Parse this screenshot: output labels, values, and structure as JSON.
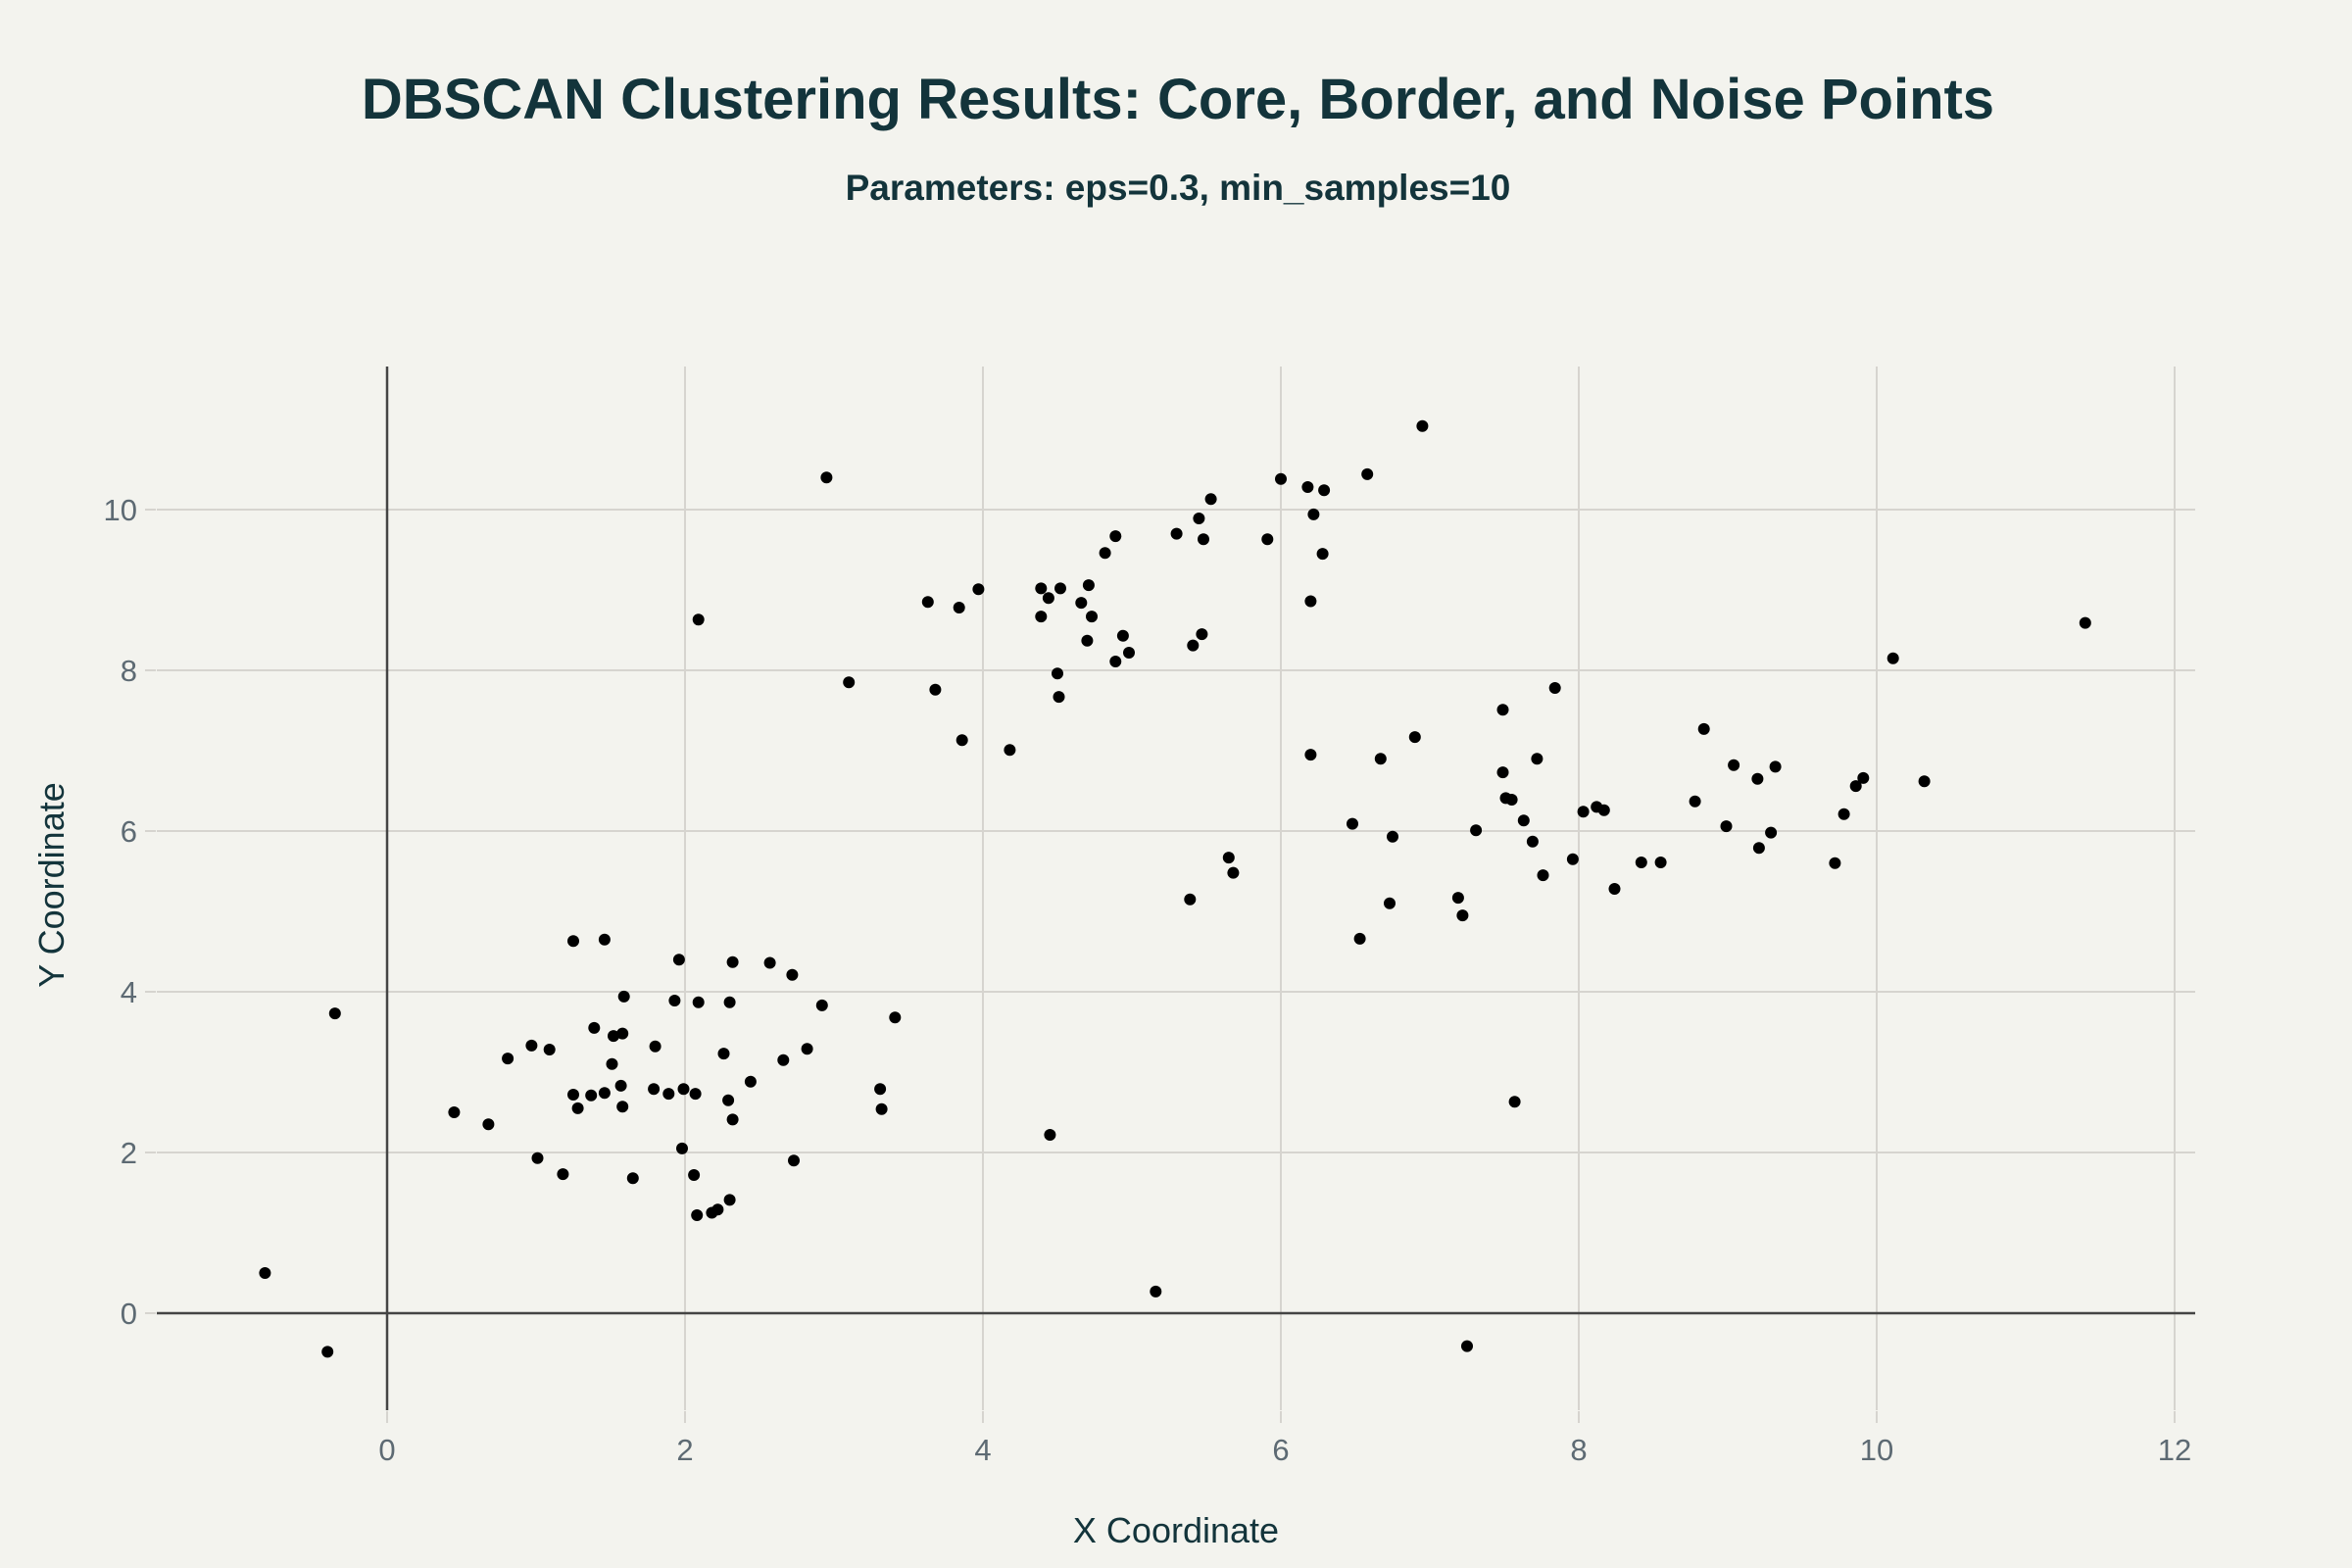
{
  "header": {
    "title": "DBSCAN Clustering Results: Core, Border, and Noise Points",
    "subtitle": "Parameters: eps=0.3, min_samples=10"
  },
  "axes": {
    "x_title": "X Coordinate",
    "y_title": "Y Coordinate",
    "x_ticks": [
      "0",
      "2",
      "4",
      "6",
      "8",
      "10",
      "12"
    ],
    "y_ticks": [
      "0",
      "2",
      "4",
      "6",
      "8",
      "10"
    ]
  },
  "colors": {
    "background": "#f3f3ee",
    "text": "#13343b",
    "tick_text": "#5d6a73",
    "grid": "#d6d4cf",
    "zeroline": "#444444",
    "marker": "#000000"
  },
  "chart_data": {
    "type": "scatter",
    "title": "DBSCAN Clustering Results: Core, Border, and Noise Points",
    "subtitle": "Parameters: eps=0.3, min_samples=10",
    "xlabel": "X Coordinate",
    "ylabel": "Y Coordinate",
    "xlim": [
      -1.55,
      12.15
    ],
    "ylim": [
      -1.2,
      11.8
    ],
    "x_tick_values": [
      0,
      2,
      4,
      6,
      8,
      10,
      12
    ],
    "y_tick_values": [
      0,
      2,
      4,
      6,
      8,
      10
    ],
    "grid": true,
    "legend": null,
    "marker_color": "#000000",
    "series": [
      {
        "name": "points",
        "points": [
          [
            -0.82,
            0.5
          ],
          [
            -0.4,
            -0.48
          ],
          [
            -0.35,
            3.73
          ],
          [
            1.25,
            4.63
          ],
          [
            1.46,
            4.65
          ],
          [
            1.96,
            4.4
          ],
          [
            1.59,
            3.94
          ],
          [
            1.93,
            3.89
          ],
          [
            1.39,
            3.55
          ],
          [
            1.52,
            3.45
          ],
          [
            1.58,
            3.48
          ],
          [
            0.97,
            3.33
          ],
          [
            1.09,
            3.28
          ],
          [
            1.8,
            3.32
          ],
          [
            0.81,
            3.17
          ],
          [
            1.51,
            3.1
          ],
          [
            1.57,
            2.83
          ],
          [
            1.25,
            2.72
          ],
          [
            1.37,
            2.71
          ],
          [
            1.46,
            2.74
          ],
          [
            1.79,
            2.79
          ],
          [
            1.89,
            2.73
          ],
          [
            1.99,
            2.79
          ],
          [
            1.28,
            2.55
          ],
          [
            1.58,
            2.57
          ],
          [
            0.45,
            2.5
          ],
          [
            0.68,
            2.35
          ],
          [
            1.01,
            1.93
          ],
          [
            1.18,
            1.73
          ],
          [
            1.65,
            1.68
          ],
          [
            1.98,
            2.05
          ],
          [
            2.32,
            4.37
          ],
          [
            2.57,
            4.36
          ],
          [
            2.72,
            4.21
          ],
          [
            2.09,
            3.87
          ],
          [
            2.3,
            3.87
          ],
          [
            2.92,
            3.83
          ],
          [
            3.41,
            3.68
          ],
          [
            2.26,
            3.23
          ],
          [
            2.66,
            3.15
          ],
          [
            2.82,
            3.29
          ],
          [
            2.44,
            2.88
          ],
          [
            2.07,
            2.73
          ],
          [
            2.29,
            2.65
          ],
          [
            2.32,
            2.41
          ],
          [
            3.31,
            2.79
          ],
          [
            3.32,
            2.54
          ],
          [
            2.73,
            1.9
          ],
          [
            2.06,
            1.72
          ],
          [
            2.3,
            1.41
          ],
          [
            2.08,
            1.22
          ],
          [
            2.18,
            1.25
          ],
          [
            2.22,
            1.29
          ],
          [
            2.95,
            10.4
          ],
          [
            2.09,
            8.63
          ],
          [
            4.89,
            9.67
          ],
          [
            4.82,
            9.46
          ],
          [
            3.97,
            9.01
          ],
          [
            3.63,
            8.85
          ],
          [
            3.84,
            8.78
          ],
          [
            4.39,
            9.02
          ],
          [
            4.52,
            9.02
          ],
          [
            4.71,
            9.06
          ],
          [
            4.44,
            8.9
          ],
          [
            4.66,
            8.84
          ],
          [
            4.39,
            8.67
          ],
          [
            4.73,
            8.67
          ],
          [
            4.7,
            8.37
          ],
          [
            4.94,
            8.43
          ],
          [
            4.98,
            8.22
          ],
          [
            4.89,
            8.11
          ],
          [
            4.5,
            7.96
          ],
          [
            4.51,
            7.67
          ],
          [
            3.1,
            7.85
          ],
          [
            3.68,
            7.76
          ],
          [
            3.86,
            7.13
          ],
          [
            4.18,
            7.01
          ],
          [
            6.95,
            11.04
          ],
          [
            6.58,
            10.44
          ],
          [
            6.0,
            10.38
          ],
          [
            6.18,
            10.28
          ],
          [
            6.29,
            10.24
          ],
          [
            5.53,
            10.13
          ],
          [
            5.45,
            9.89
          ],
          [
            6.22,
            9.94
          ],
          [
            5.3,
            9.7
          ],
          [
            5.48,
            9.63
          ],
          [
            5.91,
            9.63
          ],
          [
            6.28,
            9.45
          ],
          [
            6.2,
            8.86
          ],
          [
            5.47,
            8.45
          ],
          [
            5.41,
            8.31
          ],
          [
            7.84,
            7.78
          ],
          [
            7.49,
            7.51
          ],
          [
            6.9,
            7.17
          ],
          [
            6.2,
            6.95
          ],
          [
            6.67,
            6.9
          ],
          [
            7.72,
            6.9
          ],
          [
            7.49,
            6.73
          ],
          [
            7.51,
            6.41
          ],
          [
            7.55,
            6.39
          ],
          [
            7.63,
            6.13
          ],
          [
            8.03,
            6.24
          ],
          [
            8.12,
            6.3
          ],
          [
            8.17,
            6.26
          ],
          [
            6.48,
            6.09
          ],
          [
            6.75,
            5.93
          ],
          [
            7.31,
            6.01
          ],
          [
            7.69,
            5.87
          ],
          [
            7.96,
            5.65
          ],
          [
            7.76,
            5.45
          ],
          [
            7.19,
            5.17
          ],
          [
            7.22,
            4.95
          ],
          [
            6.73,
            5.1
          ],
          [
            6.53,
            4.66
          ],
          [
            8.84,
            7.27
          ],
          [
            9.04,
            6.82
          ],
          [
            9.32,
            6.8
          ],
          [
            9.2,
            6.65
          ],
          [
            9.91,
            6.66
          ],
          [
            9.86,
            6.56
          ],
          [
            10.32,
            6.62
          ],
          [
            8.78,
            6.37
          ],
          [
            9.78,
            6.21
          ],
          [
            8.99,
            6.06
          ],
          [
            9.29,
            5.98
          ],
          [
            9.21,
            5.79
          ],
          [
            9.72,
            5.6
          ],
          [
            8.42,
            5.61
          ],
          [
            8.55,
            5.61
          ],
          [
            8.24,
            5.28
          ],
          [
            10.11,
            8.15
          ],
          [
            11.4,
            8.59
          ],
          [
            5.65,
            5.67
          ],
          [
            5.68,
            5.48
          ],
          [
            5.39,
            5.15
          ],
          [
            4.45,
            2.22
          ],
          [
            5.16,
            0.27
          ],
          [
            7.57,
            2.63
          ],
          [
            7.25,
            -0.41
          ]
        ]
      }
    ]
  }
}
